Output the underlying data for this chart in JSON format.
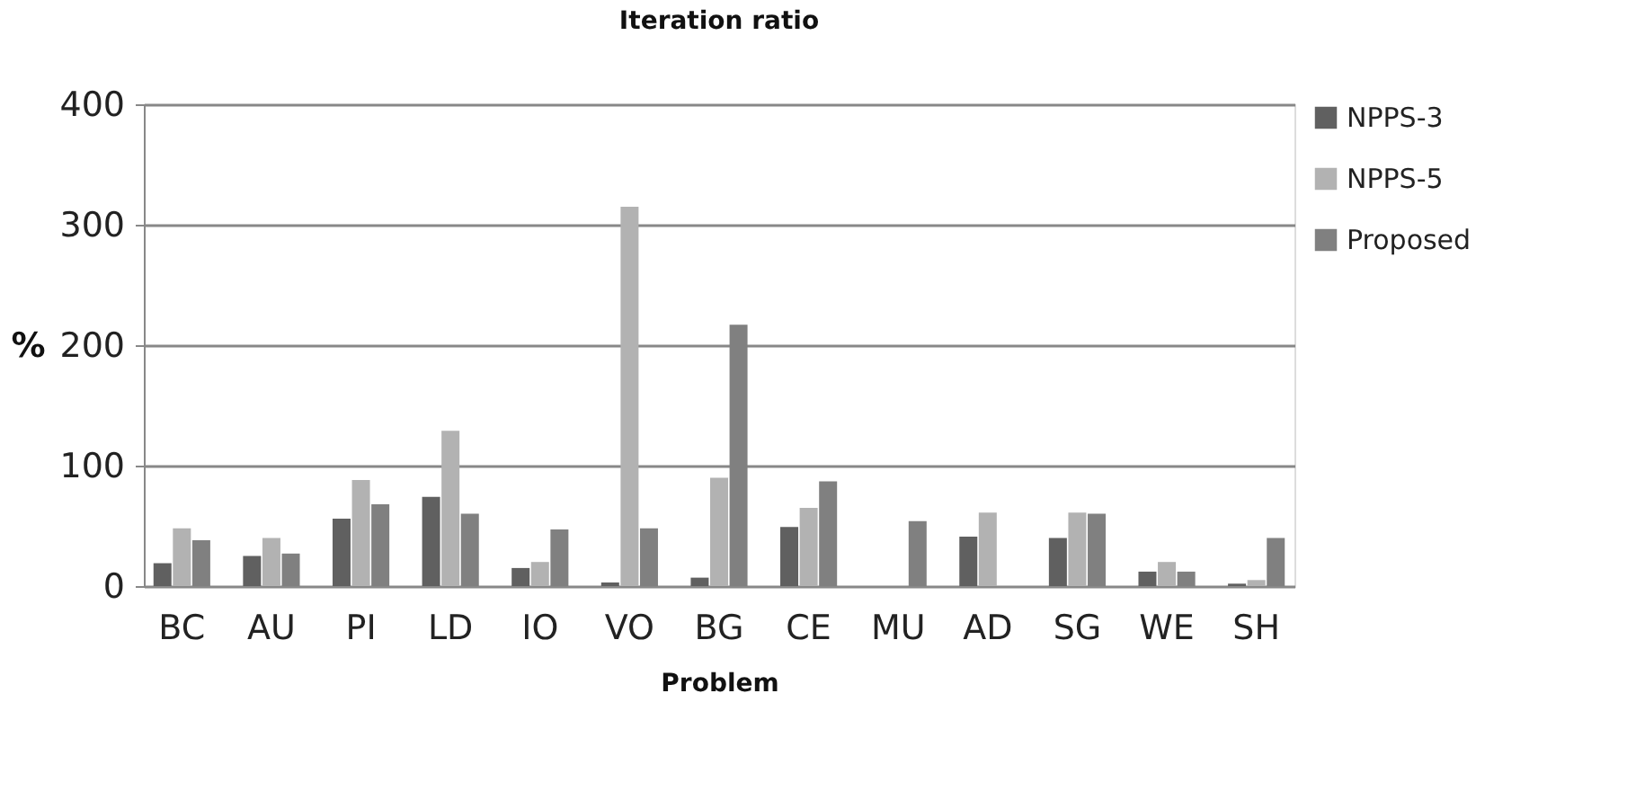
{
  "chart_data": {
    "type": "bar",
    "title": "Iteration ratio",
    "xlabel": "Problem",
    "ylabel": "%",
    "categories": [
      "BC",
      "AU",
      "PI",
      "LD",
      "IO",
      "VO",
      "BG",
      "CE",
      "MU",
      "AD",
      "SG",
      "WE",
      "SH"
    ],
    "series": [
      {
        "name": "NPPS-3",
        "color": "#606060",
        "values": [
          19,
          25,
          56,
          74,
          15,
          3,
          7,
          49,
          0,
          41,
          40,
          12,
          2
        ]
      },
      {
        "name": "NPPS-5",
        "color": "#b2b2b2",
        "values": [
          48,
          40,
          88,
          129,
          20,
          315,
          90,
          65,
          0,
          61,
          61,
          20,
          5
        ]
      },
      {
        "name": "Proposed",
        "color": "#808080",
        "values": [
          38,
          27,
          68,
          60,
          47,
          48,
          217,
          87,
          54,
          0,
          60,
          12,
          40
        ]
      }
    ],
    "ylim": [
      0,
      400
    ],
    "yticks": [
      0,
      100,
      200,
      300,
      400
    ],
    "grid": "y",
    "legend": "right"
  }
}
